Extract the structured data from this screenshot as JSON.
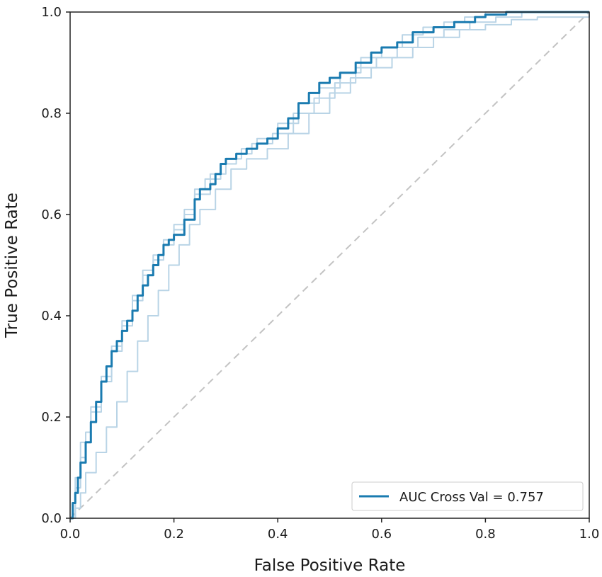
{
  "chart_data": {
    "type": "line",
    "title": "",
    "xlabel": "False Positive Rate",
    "ylabel": "True Positive Rate",
    "xlim": [
      0.0,
      1.0
    ],
    "ylim": [
      0.0,
      1.0
    ],
    "xticks": [
      "0.0",
      "0.2",
      "0.4",
      "0.6",
      "0.8",
      "1.0"
    ],
    "yticks": [
      "0.0",
      "0.2",
      "0.4",
      "0.6",
      "0.8",
      "1.0"
    ],
    "grid": false,
    "legend": {
      "placement": "lower-right",
      "entries": [
        "AUC Cross Val = 0.757"
      ]
    },
    "colors": {
      "mean": "#1a7bb0",
      "fold": "#b9d4e6",
      "chance": "#c3c3c3",
      "axes": "#222222"
    },
    "series": [
      {
        "name": "AUC Cross Val = 0.757",
        "role": "mean",
        "x": [
          0.0,
          0.005,
          0.01,
          0.015,
          0.02,
          0.03,
          0.04,
          0.05,
          0.06,
          0.07,
          0.08,
          0.09,
          0.1,
          0.11,
          0.12,
          0.13,
          0.14,
          0.15,
          0.16,
          0.17,
          0.18,
          0.19,
          0.2,
          0.22,
          0.24,
          0.25,
          0.27,
          0.28,
          0.29,
          0.3,
          0.32,
          0.34,
          0.36,
          0.38,
          0.4,
          0.42,
          0.44,
          0.46,
          0.48,
          0.5,
          0.52,
          0.55,
          0.58,
          0.6,
          0.63,
          0.66,
          0.7,
          0.74,
          0.78,
          0.8,
          0.84,
          0.88,
          0.92,
          1.0
        ],
        "y": [
          0.0,
          0.03,
          0.05,
          0.08,
          0.11,
          0.15,
          0.19,
          0.23,
          0.27,
          0.3,
          0.33,
          0.35,
          0.37,
          0.39,
          0.41,
          0.44,
          0.46,
          0.48,
          0.5,
          0.52,
          0.54,
          0.55,
          0.56,
          0.59,
          0.63,
          0.65,
          0.66,
          0.68,
          0.7,
          0.71,
          0.72,
          0.73,
          0.74,
          0.75,
          0.77,
          0.79,
          0.82,
          0.84,
          0.86,
          0.87,
          0.88,
          0.9,
          0.92,
          0.93,
          0.94,
          0.96,
          0.97,
          0.98,
          0.99,
          0.995,
          1.0,
          1.0,
          1.0,
          1.0
        ]
      },
      {
        "name": "",
        "role": "fold",
        "x": [
          0.0,
          0.01,
          0.02,
          0.03,
          0.04,
          0.06,
          0.08,
          0.1,
          0.12,
          0.14,
          0.16,
          0.18,
          0.2,
          0.22,
          0.24,
          0.27,
          0.3,
          0.33,
          0.36,
          0.4,
          0.44,
          0.48,
          0.52,
          0.56,
          0.6,
          0.64,
          0.68,
          0.72,
          0.76,
          0.8,
          0.85,
          0.9,
          1.0
        ],
        "y": [
          0.0,
          0.06,
          0.12,
          0.17,
          0.21,
          0.27,
          0.33,
          0.38,
          0.43,
          0.48,
          0.51,
          0.54,
          0.57,
          0.6,
          0.64,
          0.68,
          0.71,
          0.73,
          0.75,
          0.78,
          0.82,
          0.85,
          0.88,
          0.91,
          0.93,
          0.955,
          0.97,
          0.98,
          0.99,
          1.0,
          1.0,
          1.0,
          1.0
        ]
      },
      {
        "name": "",
        "role": "fold",
        "x": [
          0.0,
          0.01,
          0.02,
          0.03,
          0.05,
          0.07,
          0.09,
          0.11,
          0.13,
          0.15,
          0.17,
          0.19,
          0.21,
          0.23,
          0.25,
          0.28,
          0.31,
          0.34,
          0.38,
          0.42,
          0.46,
          0.5,
          0.54,
          0.58,
          0.62,
          0.66,
          0.7,
          0.75,
          0.8,
          0.85,
          0.9,
          1.0
        ],
        "y": [
          0.0,
          0.02,
          0.05,
          0.09,
          0.13,
          0.18,
          0.23,
          0.29,
          0.35,
          0.4,
          0.45,
          0.5,
          0.54,
          0.58,
          0.61,
          0.65,
          0.69,
          0.71,
          0.73,
          0.76,
          0.8,
          0.84,
          0.87,
          0.89,
          0.91,
          0.93,
          0.95,
          0.965,
          0.975,
          0.985,
          0.99,
          1.0
        ]
      },
      {
        "name": "",
        "role": "fold",
        "x": [
          0.0,
          0.01,
          0.02,
          0.04,
          0.06,
          0.08,
          0.1,
          0.12,
          0.14,
          0.16,
          0.18,
          0.2,
          0.22,
          0.24,
          0.26,
          0.29,
          0.32,
          0.35,
          0.39,
          0.43,
          0.47,
          0.51,
          0.55,
          0.59,
          0.63,
          0.67,
          0.72,
          0.77,
          0.82,
          0.87,
          1.0
        ],
        "y": [
          0.0,
          0.08,
          0.15,
          0.22,
          0.28,
          0.34,
          0.39,
          0.44,
          0.49,
          0.52,
          0.55,
          0.58,
          0.61,
          0.65,
          0.67,
          0.7,
          0.72,
          0.74,
          0.76,
          0.8,
          0.83,
          0.86,
          0.89,
          0.91,
          0.93,
          0.95,
          0.965,
          0.98,
          0.99,
          1.0,
          1.0
        ]
      },
      {
        "name": "",
        "role": "chance",
        "x": [
          0.0,
          1.0
        ],
        "y": [
          0.0,
          1.0
        ]
      }
    ]
  }
}
